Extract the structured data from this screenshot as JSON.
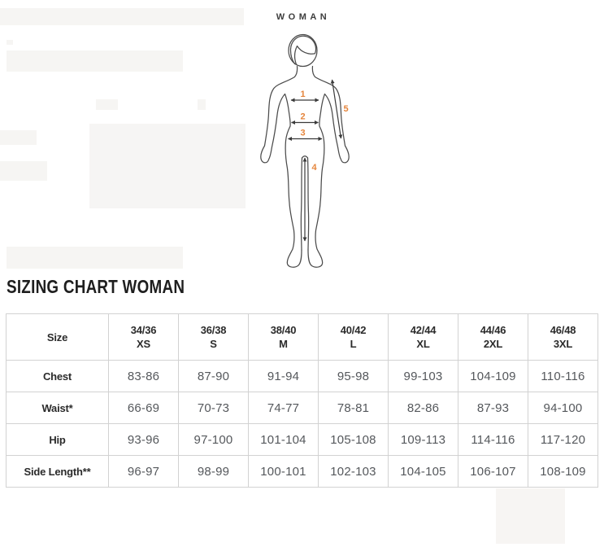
{
  "figure": {
    "label": "WOMAN",
    "line_color": "#4b4b4b",
    "accent_color": "#e5853c",
    "points": [
      {
        "id": "1",
        "measure": "chest"
      },
      {
        "id": "2",
        "measure": "waist"
      },
      {
        "id": "3",
        "measure": "hip"
      },
      {
        "id": "4",
        "measure": "side-length"
      },
      {
        "id": "5",
        "measure": "arm-length"
      }
    ]
  },
  "section": {
    "title": "SIZING CHART WOMAN"
  },
  "table": {
    "columns": [
      {
        "top": "Size",
        "bottom": ""
      },
      {
        "top": "34/36",
        "bottom": "XS"
      },
      {
        "top": "36/38",
        "bottom": "S"
      },
      {
        "top": "38/40",
        "bottom": "M"
      },
      {
        "top": "40/42",
        "bottom": "L"
      },
      {
        "top": "42/44",
        "bottom": "XL"
      },
      {
        "top": "44/46",
        "bottom": "2XL"
      },
      {
        "top": "46/48",
        "bottom": "3XL"
      }
    ],
    "rows": [
      {
        "label": "Chest",
        "values": [
          "83-86",
          "87-90",
          "91-94",
          "95-98",
          "99-103",
          "104-109",
          "110-116"
        ]
      },
      {
        "label": "Waist*",
        "values": [
          "66-69",
          "70-73",
          "74-77",
          "78-81",
          "82-86",
          "87-93",
          "94-100"
        ]
      },
      {
        "label": "Hip",
        "values": [
          "93-96",
          "97-100",
          "101-104",
          "105-108",
          "109-113",
          "114-116",
          "117-120"
        ]
      },
      {
        "label": "Side Length**",
        "values": [
          "96-97",
          "98-99",
          "100-101",
          "102-103",
          "104-105",
          "106-107",
          "108-109"
        ]
      }
    ]
  }
}
